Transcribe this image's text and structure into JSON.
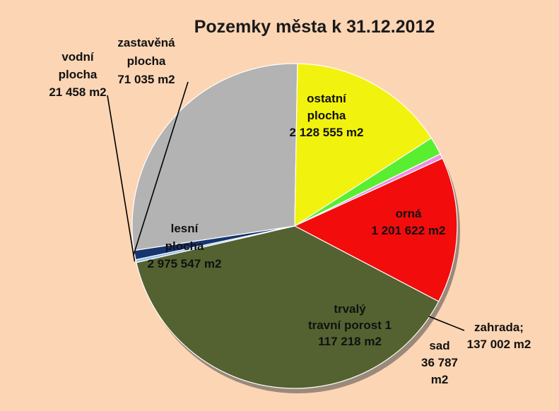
{
  "chart_data": {
    "type": "pie",
    "title": "Pozemky města k 31.12.2012",
    "slices": [
      {
        "key": "zastavena",
        "lines": [
          "zastavěná",
          "plocha",
          "71 035 m2"
        ],
        "value": 71035,
        "color": "#17366e"
      },
      {
        "key": "ostatni",
        "lines": [
          "ostatní",
          "plocha",
          "2 128 555 m2"
        ],
        "value": 2128555,
        "color": "#b3b3b3"
      },
      {
        "key": "orna",
        "lines": [
          "orná",
          "1 201 622 m2"
        ],
        "value": 1201622,
        "color": "#f2f20f"
      },
      {
        "key": "zahrada",
        "lines": [
          "zahrada;",
          "137 002 m2"
        ],
        "value": 137002,
        "color": "#5aee30"
      },
      {
        "key": "sad",
        "lines": [
          "sad",
          "36 787",
          "m2"
        ],
        "value": 36787,
        "color": "#ee8fe6"
      },
      {
        "key": "trvaly",
        "lines": [
          "trvalý",
          "travní porost 1",
          "117 218 m2"
        ],
        "value": 1117218,
        "color": "#f20c0c"
      },
      {
        "key": "lesni",
        "lines": [
          "lesní",
          "plocha",
          "2 975 547 m2"
        ],
        "value": 2975547,
        "color": "#536230"
      },
      {
        "key": "vodni",
        "lines": [
          "vodní",
          "plocha",
          "21 458 m2"
        ],
        "value": 21458,
        "color": "#96bde9"
      }
    ]
  }
}
